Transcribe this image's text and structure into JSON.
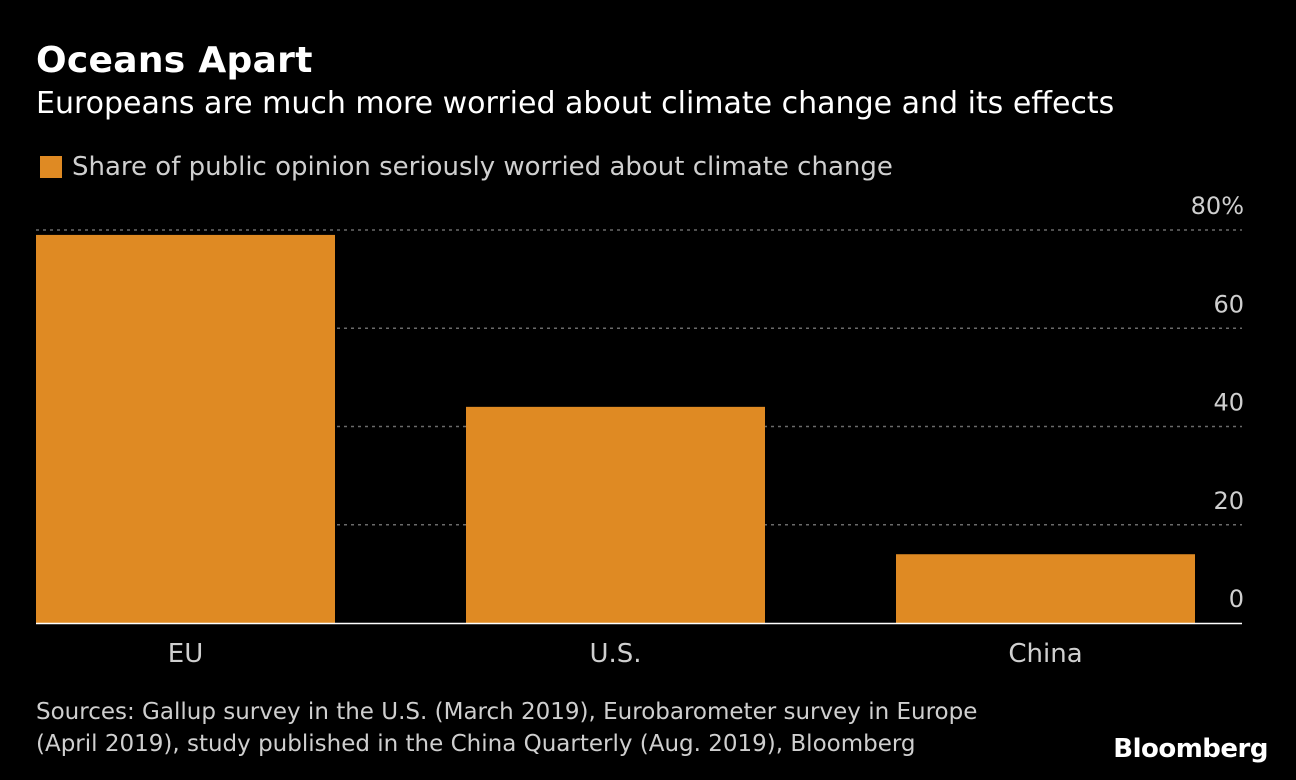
{
  "header": {
    "title": "Oceans Apart",
    "subtitle": "Europeans are much more worried about climate change and its effects"
  },
  "colors": {
    "background": "#000000",
    "bar": "#DF8A23",
    "gridline": "#6a6a6a",
    "axis_text": "#cfcfcf",
    "text": "#ffffff"
  },
  "chart_data": {
    "type": "bar",
    "title": "Oceans Apart",
    "subtitle": "Europeans are much more worried about climate change and its effects",
    "categories": [
      "EU",
      "U.S.",
      "China"
    ],
    "series": [
      {
        "name": "Share of public opinion seriously worried about climate change",
        "values": [
          79,
          44,
          14
        ]
      }
    ],
    "xlabel": "",
    "ylabel": "",
    "ylim": [
      0,
      80
    ],
    "yticks": [
      0,
      20,
      40,
      60,
      80
    ],
    "ytick_labels": [
      "0",
      "20",
      "40",
      "60",
      "80%"
    ],
    "grid": true,
    "legend_position": "top-left",
    "y_axis_side": "right"
  },
  "footer": {
    "sources_line1": "Sources: Gallup survey in the U.S. (March 2019), Eurobarometer survey in Europe",
    "sources_line2": "(April 2019), study published in the China Quarterly (Aug. 2019), Bloomberg",
    "brand": "Bloomberg"
  }
}
